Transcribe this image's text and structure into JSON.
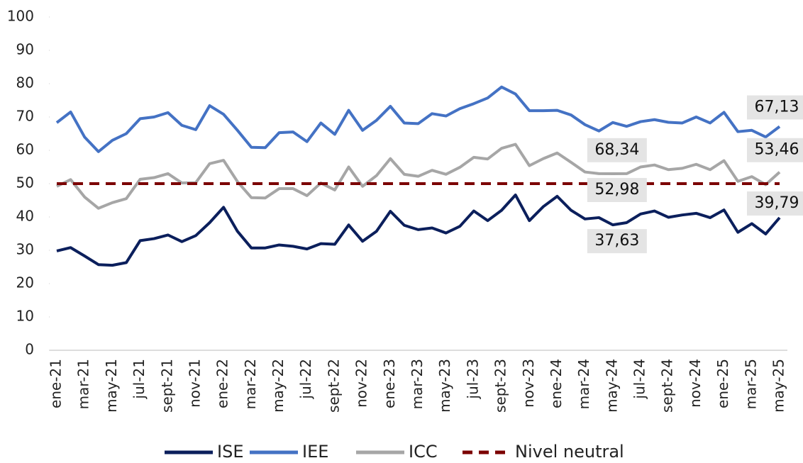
{
  "chart_data": {
    "type": "line",
    "categories": [
      "ene-21",
      null,
      "mar-21",
      null,
      "may-21",
      null,
      "jul-21",
      null,
      "sept-21",
      null,
      "nov-21",
      null,
      "ene-22",
      null,
      "mar-22",
      null,
      "may-22",
      null,
      "jul-22",
      null,
      "sept-22",
      null,
      "nov-22",
      null,
      "ene-23",
      null,
      "mar-23",
      null,
      "may-23",
      null,
      "jul-23",
      null,
      "sept-23",
      null,
      "nov-23",
      null,
      "ene-24",
      null,
      "mar-24",
      null,
      "may-24",
      null,
      "jul-24",
      null,
      "sept-24",
      null,
      "nov-24",
      null,
      "ene-25",
      null,
      "mar-25",
      null,
      "may-25"
    ],
    "series": [
      {
        "name": "ISE",
        "color": "#0b1f5c",
        "values": [
          29.8,
          30.8,
          28.3,
          25.7,
          25.5,
          26.3,
          32.9,
          33.5,
          34.6,
          32.6,
          34.4,
          38.3,
          42.9,
          35.7,
          30.7,
          30.7,
          31.6,
          31.2,
          30.4,
          32.0,
          31.8,
          37.6,
          32.7,
          35.7,
          41.7,
          37.5,
          36.2,
          36.7,
          35.2,
          37.2,
          41.8,
          38.9,
          42.0,
          46.6,
          38.9,
          43.1,
          46.2,
          42.0,
          39.4,
          39.8,
          37.63,
          38.3,
          40.9,
          41.8,
          39.9,
          40.6,
          41.1,
          39.8,
          42.1,
          35.4,
          38.0,
          34.9,
          39.79
        ],
        "value_labels": [
          null,
          null,
          null,
          null,
          null,
          null,
          null,
          null,
          null,
          null,
          null,
          null,
          null,
          null,
          null,
          null,
          null,
          null,
          null,
          null,
          null,
          null,
          null,
          null,
          null,
          null,
          null,
          null,
          null,
          null,
          null,
          null,
          null,
          null,
          null,
          null,
          null,
          null,
          null,
          null,
          "37,63",
          null,
          null,
          null,
          null,
          null,
          null,
          null,
          null,
          null,
          null,
          null,
          "39,79"
        ]
      },
      {
        "name": "IEE",
        "color": "#4472c4",
        "values": [
          68.3,
          71.5,
          64.0,
          59.6,
          63.0,
          65.0,
          69.5,
          70.0,
          71.3,
          67.5,
          66.2,
          73.4,
          70.8,
          66.0,
          60.9,
          60.8,
          65.3,
          65.5,
          62.6,
          68.2,
          64.8,
          72.0,
          66.0,
          69.0,
          73.2,
          68.2,
          68.0,
          71.0,
          70.3,
          72.5,
          74.0,
          75.7,
          79.0,
          76.9,
          71.9,
          71.9,
          72.0,
          70.6,
          67.7,
          65.8,
          68.34,
          67.2,
          68.6,
          69.2,
          68.4,
          68.2,
          70.0,
          68.2,
          71.4,
          65.6,
          66.0,
          64.0,
          67.13
        ],
        "value_labels": [
          null,
          null,
          null,
          null,
          null,
          null,
          null,
          null,
          null,
          null,
          null,
          null,
          null,
          null,
          null,
          null,
          null,
          null,
          null,
          null,
          null,
          null,
          null,
          null,
          null,
          null,
          null,
          null,
          null,
          null,
          null,
          null,
          null,
          null,
          null,
          null,
          null,
          null,
          null,
          null,
          "68,34",
          null,
          null,
          null,
          null,
          null,
          null,
          null,
          null,
          null,
          null,
          null,
          "67,13"
        ]
      },
      {
        "name": "ICC",
        "color": "#a6a6a6",
        "values": [
          49.2,
          51.2,
          46.0,
          42.6,
          44.3,
          45.5,
          51.3,
          51.8,
          53.0,
          50.2,
          50.3,
          56.0,
          57.0,
          50.6,
          45.8,
          45.7,
          48.5,
          48.5,
          46.4,
          50.2,
          48.1,
          55.0,
          49.2,
          52.4,
          57.5,
          52.8,
          52.2,
          54.0,
          52.8,
          54.9,
          57.9,
          57.4,
          60.6,
          61.8,
          55.4,
          57.5,
          59.2,
          56.4,
          53.5,
          53.0,
          52.98,
          53.0,
          55.0,
          55.6,
          54.2,
          54.6,
          55.8,
          54.2,
          56.9,
          50.7,
          52.1,
          49.7,
          53.46
        ],
        "value_labels": [
          null,
          null,
          null,
          null,
          null,
          null,
          null,
          null,
          null,
          null,
          null,
          null,
          null,
          null,
          null,
          null,
          null,
          null,
          null,
          null,
          null,
          null,
          null,
          null,
          null,
          null,
          null,
          null,
          null,
          null,
          null,
          null,
          null,
          null,
          null,
          null,
          null,
          null,
          null,
          null,
          "52,98",
          null,
          null,
          null,
          null,
          null,
          null,
          null,
          null,
          null,
          null,
          null,
          "53,46"
        ]
      },
      {
        "name": "Nivel neutral",
        "color": "#7b0000",
        "dashed": true,
        "values": [
          50,
          50,
          50,
          50,
          50,
          50,
          50,
          50,
          50,
          50,
          50,
          50,
          50,
          50,
          50,
          50,
          50,
          50,
          50,
          50,
          50,
          50,
          50,
          50,
          50,
          50,
          50,
          50,
          50,
          50,
          50,
          50,
          50,
          50,
          50,
          50,
          50,
          50,
          50,
          50,
          50,
          50,
          50,
          50,
          50,
          50,
          50,
          50,
          50,
          50,
          50,
          50,
          50
        ]
      }
    ],
    "ylim": [
      0,
      100
    ],
    "yticks": [
      0,
      10,
      20,
      30,
      40,
      50,
      60,
      70,
      80,
      90,
      100
    ],
    "legend": "bottom"
  }
}
